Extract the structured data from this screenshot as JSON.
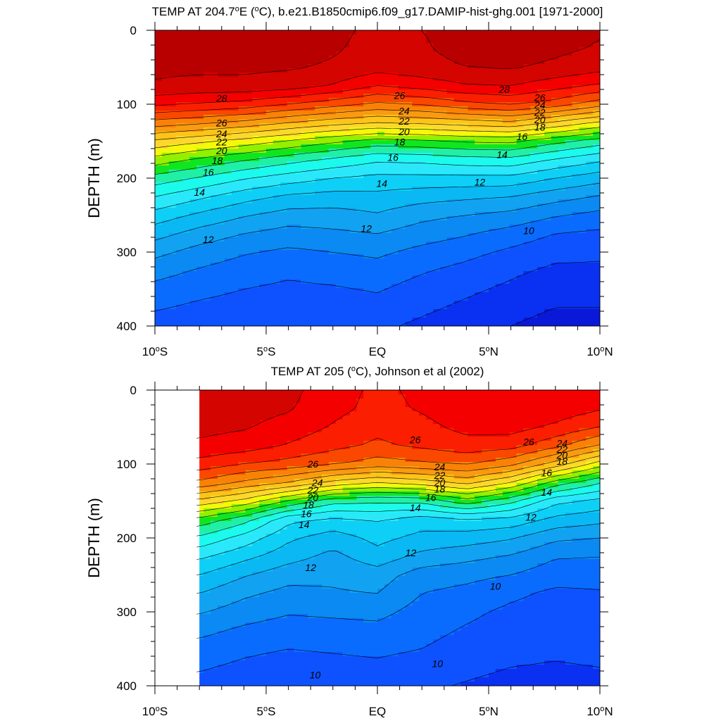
{
  "chart_data": [
    {
      "type": "heatmap",
      "id": "model",
      "title": {
        "p1": "TEMP AT 204.7",
        "sup1": "o",
        "p2": "E (",
        "sup2": "o",
        "p3": "C), b.e21.B1850cmip6.f09_g17.DAMIP-hist-ghg.001 [1971-2000]"
      },
      "ylabel": "DEPTH (m)",
      "xlim": [
        -10,
        10
      ],
      "ylim": [
        0,
        400
      ],
      "y_reversed": true,
      "x_ticks": [
        {
          "value": -10,
          "p1": "10",
          "sup": "o",
          "p2": "S"
        },
        {
          "value": -5,
          "p1": "5",
          "sup": "o",
          "p2": "S"
        },
        {
          "value": 0,
          "p1": "EQ",
          "sup": "",
          "p2": ""
        },
        {
          "value": 5,
          "p1": "5",
          "sup": "o",
          "p2": "N"
        },
        {
          "value": 10,
          "p1": "10",
          "sup": "o",
          "p2": "N"
        }
      ],
      "y_ticks": [
        0,
        100,
        200,
        300,
        400
      ],
      "data_xmin": -10,
      "contour_levels": [
        8,
        9,
        10,
        11,
        12,
        13,
        14,
        15,
        16,
        17,
        18,
        19,
        20,
        21,
        22,
        23,
        24,
        25,
        26,
        27,
        28,
        29
      ],
      "lat": [
        -10,
        -8,
        -6,
        -4,
        -2,
        0,
        2,
        4,
        6,
        8,
        10
      ],
      "depth": [
        0,
        25,
        50,
        75,
        100,
        125,
        150,
        175,
        200,
        225,
        250,
        275,
        300,
        325,
        350,
        375,
        400
      ],
      "temp": [
        [
          29.3,
          29.3,
          29.3,
          29.2,
          29.2,
          28.8,
          29.0,
          29.3,
          29.4,
          29.3,
          29.1
        ],
        [
          29.3,
          29.3,
          29.3,
          29.2,
          29.1,
          28.7,
          28.9,
          29.3,
          29.4,
          29.2,
          28.9
        ],
        [
          29.2,
          29.2,
          29.2,
          29.1,
          28.9,
          28.4,
          28.7,
          29.0,
          29.1,
          28.8,
          28.4
        ],
        [
          28.9,
          28.7,
          28.7,
          28.5,
          27.9,
          27.0,
          27.4,
          27.9,
          28.0,
          27.4,
          26.8
        ],
        [
          27.2,
          26.9,
          26.6,
          26.0,
          25.4,
          24.8,
          25.1,
          25.7,
          26.1,
          25.5,
          24.4
        ],
        [
          24.6,
          24.2,
          23.7,
          23.0,
          22.4,
          22.0,
          22.2,
          22.5,
          22.8,
          21.8,
          20.8
        ],
        [
          21.8,
          21.2,
          20.6,
          19.9,
          19.2,
          18.6,
          18.8,
          19.1,
          19.2,
          18.3,
          17.5
        ],
        [
          19.6,
          18.8,
          18.1,
          17.4,
          16.8,
          16.2,
          16.3,
          16.6,
          16.7,
          15.9,
          15.2
        ],
        [
          17.6,
          16.9,
          16.1,
          15.5,
          15.0,
          14.7,
          14.7,
          14.7,
          14.7,
          14.0,
          13.4
        ],
        [
          16.0,
          15.2,
          14.4,
          13.8,
          13.6,
          13.7,
          13.4,
          13.2,
          13.0,
          12.4,
          11.9
        ],
        [
          14.6,
          13.8,
          13.1,
          12.6,
          12.6,
          12.9,
          12.3,
          12.0,
          11.7,
          11.1,
          10.7
        ],
        [
          13.4,
          12.6,
          12.0,
          11.6,
          11.8,
          12.0,
          11.5,
          11.1,
          10.6,
          10.0,
          9.8
        ],
        [
          12.3,
          11.6,
          11.1,
          10.8,
          11.0,
          11.2,
          10.7,
          10.3,
          9.8,
          9.3,
          9.2
        ],
        [
          11.4,
          10.9,
          10.5,
          10.2,
          10.4,
          10.6,
          10.1,
          9.7,
          9.2,
          8.8,
          8.8
        ],
        [
          10.7,
          10.3,
          10.0,
          9.8,
          9.9,
          10.1,
          9.6,
          9.2,
          8.8,
          8.4,
          8.4
        ],
        [
          10.1,
          9.8,
          9.6,
          9.4,
          9.5,
          9.6,
          9.2,
          8.8,
          8.4,
          8.0,
          8.0
        ],
        [
          9.6,
          9.4,
          9.2,
          9.0,
          9.1,
          9.2,
          8.8,
          8.4,
          8.0,
          7.6,
          7.6
        ]
      ],
      "labels": [
        {
          "text": "28",
          "lat": -7.0,
          "depth": 92
        },
        {
          "text": "26",
          "lat": 1.0,
          "depth": 88
        },
        {
          "text": "28",
          "lat": 5.7,
          "depth": 80
        },
        {
          "text": "26",
          "lat": 7.3,
          "depth": 91
        },
        {
          "text": "24",
          "lat": 7.3,
          "depth": 101
        },
        {
          "text": "22",
          "lat": 7.3,
          "depth": 111
        },
        {
          "text": "20",
          "lat": 7.3,
          "depth": 121
        },
        {
          "text": "18",
          "lat": 7.3,
          "depth": 131
        },
        {
          "text": "26",
          "lat": -7.0,
          "depth": 125
        },
        {
          "text": "24",
          "lat": -7.0,
          "depth": 140
        },
        {
          "text": "22",
          "lat": -7.0,
          "depth": 151
        },
        {
          "text": "20",
          "lat": -7.0,
          "depth": 163
        },
        {
          "text": "18",
          "lat": -7.2,
          "depth": 176
        },
        {
          "text": "16",
          "lat": -7.6,
          "depth": 192
        },
        {
          "text": "14",
          "lat": -8.0,
          "depth": 219
        },
        {
          "text": "12",
          "lat": -7.6,
          "depth": 283
        },
        {
          "text": "24",
          "lat": 1.2,
          "depth": 109
        },
        {
          "text": "22",
          "lat": 1.2,
          "depth": 123
        },
        {
          "text": "20",
          "lat": 1.2,
          "depth": 137
        },
        {
          "text": "18",
          "lat": 1.0,
          "depth": 151
        },
        {
          "text": "16",
          "lat": 0.7,
          "depth": 172
        },
        {
          "text": "14",
          "lat": 0.2,
          "depth": 207
        },
        {
          "text": "12",
          "lat": -0.5,
          "depth": 268
        },
        {
          "text": "16",
          "lat": 6.5,
          "depth": 144
        },
        {
          "text": "14",
          "lat": 5.6,
          "depth": 168
        },
        {
          "text": "12",
          "lat": 4.6,
          "depth": 205
        },
        {
          "text": "10",
          "lat": 6.8,
          "depth": 271
        }
      ]
    },
    {
      "type": "heatmap",
      "id": "obs",
      "title": {
        "p1": "TEMP AT 205 (",
        "sup1": "o",
        "p2": "C), Johnson et al (2002)",
        "sup2": "",
        "p3": ""
      },
      "ylabel": "DEPTH (m)",
      "xlim": [
        -10,
        10
      ],
      "ylim": [
        0,
        400
      ],
      "y_reversed": true,
      "x_ticks": [
        {
          "value": -10,
          "p1": "10",
          "sup": "o",
          "p2": "S"
        },
        {
          "value": -5,
          "p1": "5",
          "sup": "o",
          "p2": "S"
        },
        {
          "value": 0,
          "p1": "EQ",
          "sup": "",
          "p2": ""
        },
        {
          "value": 5,
          "p1": "5",
          "sup": "o",
          "p2": "N"
        },
        {
          "value": 10,
          "p1": "10",
          "sup": "o",
          "p2": "N"
        }
      ],
      "y_ticks": [
        0,
        100,
        200,
        300,
        400
      ],
      "data_xmin": -8,
      "contour_levels": [
        8,
        9,
        10,
        11,
        12,
        13,
        14,
        15,
        16,
        17,
        18,
        19,
        20,
        21,
        22,
        23,
        24,
        25,
        26,
        27,
        28,
        29
      ],
      "lat": [
        -10,
        -8,
        -6,
        -4,
        -2,
        0,
        2,
        4,
        6,
        8,
        10
      ],
      "depth": [
        0,
        25,
        50,
        75,
        100,
        125,
        150,
        175,
        200,
        225,
        250,
        275,
        300,
        325,
        350,
        375,
        400
      ],
      "temp": [
        [
          28.6,
          28.6,
          28.5,
          28.3,
          27.4,
          26.8,
          27.2,
          27.8,
          28.0,
          27.8,
          27.4
        ],
        [
          28.5,
          28.5,
          28.4,
          28.1,
          27.3,
          26.7,
          27.1,
          27.7,
          27.9,
          27.6,
          27.1
        ],
        [
          28.3,
          28.3,
          28.1,
          27.6,
          26.9,
          26.3,
          26.7,
          27.3,
          27.4,
          26.8,
          26.0
        ],
        [
          27.8,
          27.8,
          27.5,
          26.9,
          26.3,
          25.8,
          26.2,
          26.6,
          26.4,
          25.3,
          23.9
        ],
        [
          26.6,
          26.6,
          26.0,
          25.6,
          25.1,
          24.5,
          24.8,
          25.1,
          24.3,
          22.6,
          20.5
        ],
        [
          24.8,
          24.8,
          23.8,
          23.0,
          21.7,
          21.0,
          21.5,
          22.3,
          21.0,
          18.6,
          17.1
        ],
        [
          21.7,
          21.7,
          20.7,
          18.9,
          17.4,
          17.2,
          17.3,
          18.6,
          17.3,
          15.3,
          14.7
        ],
        [
          18.7,
          18.7,
          17.4,
          15.3,
          14.8,
          15.1,
          14.5,
          14.9,
          14.7,
          13.7,
          13.3
        ],
        [
          16.8,
          16.8,
          15.6,
          14.2,
          13.5,
          14.3,
          13.7,
          13.5,
          13.1,
          12.2,
          12.0
        ],
        [
          15.2,
          15.2,
          14.3,
          13.4,
          12.7,
          13.6,
          12.7,
          12.3,
          11.9,
          11.1,
          11.0
        ],
        [
          14.0,
          14.0,
          13.1,
          12.4,
          12.2,
          12.5,
          11.5,
          11.3,
          11.0,
          10.4,
          10.4
        ],
        [
          13.0,
          13.0,
          12.2,
          11.7,
          11.9,
          12.0,
          11.0,
          10.7,
          10.2,
          9.8,
          9.9
        ],
        [
          12.1,
          12.1,
          11.5,
          11.1,
          11.2,
          11.3,
          10.6,
          10.2,
          9.8,
          9.6,
          9.7
        ],
        [
          11.3,
          11.3,
          10.8,
          10.5,
          10.6,
          10.7,
          10.3,
          9.9,
          9.6,
          9.4,
          9.5
        ],
        [
          10.6,
          10.6,
          10.2,
          10.0,
          10.1,
          10.2,
          10.0,
          9.6,
          9.3,
          9.2,
          9.3
        ],
        [
          10.1,
          10.1,
          9.8,
          9.6,
          9.7,
          9.8,
          9.6,
          9.3,
          9.0,
          8.9,
          9.0
        ],
        [
          9.7,
          9.7,
          9.5,
          9.3,
          9.3,
          9.4,
          9.2,
          8.9,
          8.6,
          8.6,
          8.7
        ]
      ],
      "labels": [
        {
          "text": "26",
          "lat": -2.9,
          "depth": 100
        },
        {
          "text": "24",
          "lat": -2.7,
          "depth": 125
        },
        {
          "text": "22",
          "lat": -2.9,
          "depth": 135
        },
        {
          "text": "20",
          "lat": -2.9,
          "depth": 145
        },
        {
          "text": "18",
          "lat": -3.1,
          "depth": 155
        },
        {
          "text": "16",
          "lat": -3.2,
          "depth": 167
        },
        {
          "text": "14",
          "lat": -3.3,
          "depth": 182
        },
        {
          "text": "12",
          "lat": -3.0,
          "depth": 240
        },
        {
          "text": "10",
          "lat": -2.8,
          "depth": 385
        },
        {
          "text": "26",
          "lat": 1.7,
          "depth": 67
        },
        {
          "text": "24",
          "lat": 2.8,
          "depth": 104
        },
        {
          "text": "22",
          "lat": 2.8,
          "depth": 115
        },
        {
          "text": "20",
          "lat": 2.8,
          "depth": 125
        },
        {
          "text": "18",
          "lat": 2.8,
          "depth": 134
        },
        {
          "text": "16",
          "lat": 2.4,
          "depth": 145
        },
        {
          "text": "14",
          "lat": 1.7,
          "depth": 159
        },
        {
          "text": "12",
          "lat": 1.5,
          "depth": 220
        },
        {
          "text": "10",
          "lat": 2.7,
          "depth": 370
        },
        {
          "text": "26",
          "lat": 6.8,
          "depth": 70
        },
        {
          "text": "24",
          "lat": 8.3,
          "depth": 72
        },
        {
          "text": "22",
          "lat": 8.3,
          "depth": 80
        },
        {
          "text": "20",
          "lat": 8.3,
          "depth": 88
        },
        {
          "text": "18",
          "lat": 8.3,
          "depth": 96
        },
        {
          "text": "16",
          "lat": 7.6,
          "depth": 112
        },
        {
          "text": "14",
          "lat": 7.6,
          "depth": 138
        },
        {
          "text": "12",
          "lat": 6.9,
          "depth": 172
        },
        {
          "text": "10",
          "lat": 5.3,
          "depth": 265
        }
      ]
    }
  ],
  "colors": {
    "palette": [
      "#0a18d8",
      "#0a30f2",
      "#0e52ff",
      "#0a6cff",
      "#0a8af2",
      "#12a2f2",
      "#0ab8f4",
      "#0ed0f6",
      "#2ae8fa",
      "#1cfaee",
      "#20f0a6",
      "#10e620",
      "#92f000",
      "#f4f80a",
      "#fcd82c",
      "#fdc418",
      "#f99a10",
      "#f98206",
      "#fa4800",
      "#fb1e00",
      "#f40000",
      "#d40400",
      "#b80000"
    ],
    "missing": "#ffffff"
  }
}
